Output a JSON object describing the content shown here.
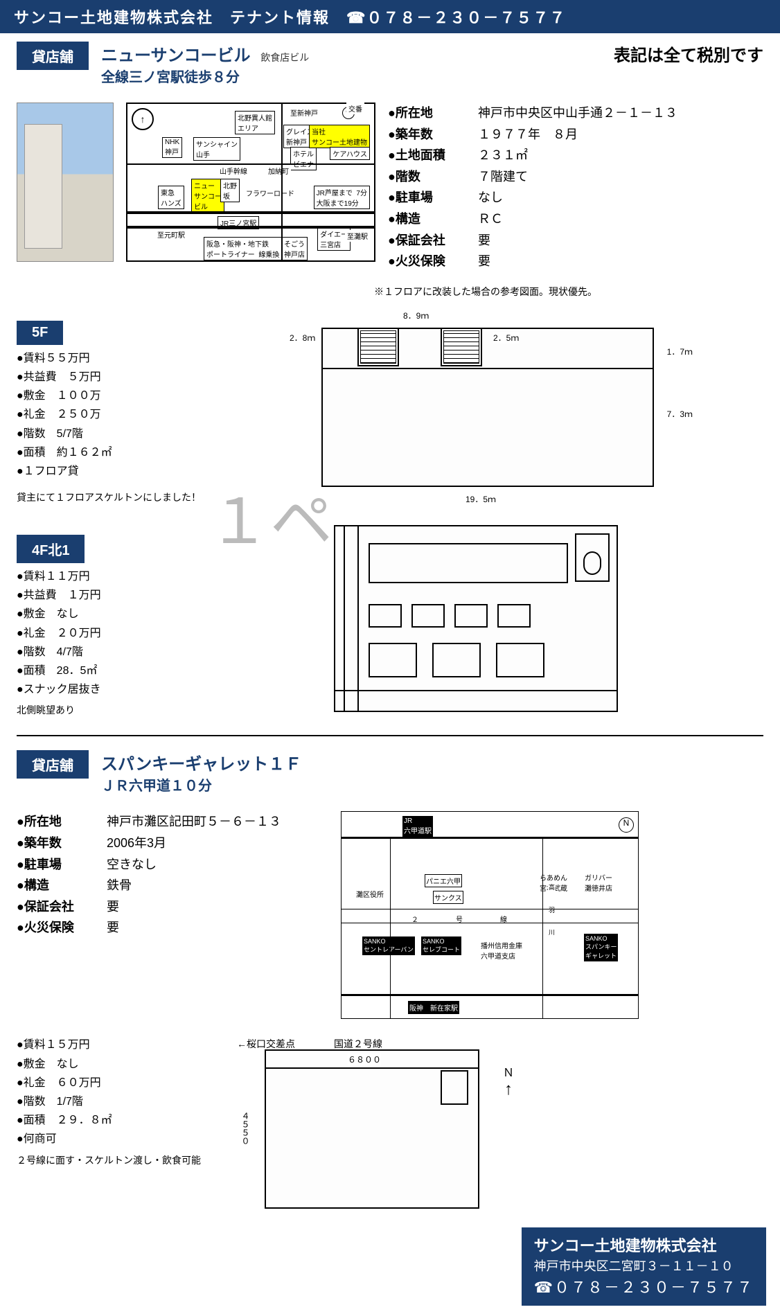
{
  "header": {
    "company": "サンコー土地建物株式会社",
    "tenant": "テナント情報",
    "tel": "☎０７８－２３０－７５７７"
  },
  "taxnote": "表記は全て税別です",
  "p1": {
    "badge": "貸店舗",
    "bld": "ニューサンコービル",
    "type": "飲食店ビル",
    "access": "全線三ノ宮駅徒歩８分",
    "specs": [
      {
        "k": "●所在地",
        "v": "神戸市中央区中山手通２－１－１３"
      },
      {
        "k": "●築年数",
        "v": "１９７７年　８月"
      },
      {
        "k": "●土地面積",
        "v": "２３１㎡"
      },
      {
        "k": "●階数",
        "v": "７階建て"
      },
      {
        "k": "●駐車場",
        "v": "なし"
      },
      {
        "k": "●構造",
        "v": "ＲＣ"
      },
      {
        "k": "●保証会社",
        "v": "要"
      },
      {
        "k": "●火災保険",
        "v": "要"
      }
    ],
    "planNote": "※１フロアに改装した場合の参考図面。現状優先。",
    "floor5": {
      "badge": "5F",
      "items": [
        "賃料５５万円",
        "共益費　５万円",
        "敷金　１００万",
        "礼金　２５０万",
        "階数　5/7階",
        "面積　約１６２㎡",
        "１フロア貸"
      ],
      "note": "貸主にて１フロアスケルトンにしました！"
    },
    "dims5": {
      "a": "8．9ｍ",
      "b": "2．8ｍ",
      "c": "2．5ｍ",
      "d": "1．7ｍ",
      "e": "7．3ｍ",
      "f": "19．5ｍ"
    },
    "floor4": {
      "badge": "4F北1",
      "items": [
        "賃料１１万円",
        "共益費　１万円",
        "敷金　なし",
        "礼金　２０万円",
        "階数　4/7階",
        "面積　28．5㎡",
        "スナック居抜き"
      ],
      "extra": "北側眺望あり"
    }
  },
  "map1": {
    "nhk": "NHK\n神戸",
    "sun": "サンシャイン\n山手",
    "kita": "北野異人館\nエリア",
    "to_shinkobe": "至新神戸",
    "grace": "グレイスハイツ\n新神戸",
    "hotel": "ホテル\nビエナ",
    "here": "当社\nサンコー土地建物",
    "care": "ケアハウス",
    "yamate": "山手幹線",
    "kano": "加納町",
    "tokyu": "東急\nハンズ",
    "new": "ニュー\nサンコー\nビル",
    "kitano": "北野\n坂",
    "flower": "フラワーロード",
    "jrtime": "JR芦屋まで  7分\n大阪まで19分",
    "jr": "JR三ノ宮駅",
    "motomachi": "至元町駅",
    "hanshin": "阪急・阪神・地下鉄\nポートライナー  線乗換",
    "sogo": "そごう\n神戸店",
    "daiei": "ダイエー\n三宮店",
    "nada": "至灘駅",
    "kosaten": "交番"
  },
  "p2": {
    "badge": "貸店舗",
    "bld": "スパンキーギャレット１Ｆ",
    "access": "ＪＲ六甲道１０分",
    "specs": [
      {
        "k": "●所在地",
        "v": "神戸市灘区記田町５－６－１３"
      },
      {
        "k": "●築年数",
        "v": "2006年3月"
      },
      {
        "k": "●駐車場",
        "v": "空きなし"
      },
      {
        "k": "●構造",
        "v": "鉄骨"
      },
      {
        "k": "●保証会社",
        "v": "要"
      },
      {
        "k": "●火災保険",
        "v": "要"
      }
    ],
    "rent": {
      "items": [
        "賃料１５万円",
        "敷金　なし",
        "礼金　６０万円",
        "階数　1/7階",
        "面積　２９．８㎡",
        "何商可"
      ],
      "extra": "２号線に面す・スケルトン渡し・飲食可能"
    },
    "dims": {
      "w": "６８００",
      "h": "４５５０",
      "left": "←桜口交差点",
      "road": "国道２号線",
      "n": "Ｎ"
    }
  },
  "map2": {
    "jr": "JR\n六甲道駅",
    "nada": "灘区役所",
    "panie": "パニエ六甲",
    "thanks": "サンクス",
    "ramen": "らあめん\n宮本武蔵",
    "gulliver": "ガリバー\n灘徳井店",
    "route": "２　　　号　　　線",
    "s1": "SANKO\nセントレアーバン",
    "s2": "SANKO\nセレブコート",
    "bank": "播州信用金庫\n六甲道支店",
    "s3": "SANKO\nスパンキー\nギャレット",
    "hanshin": "阪神　新在家駅",
    "taka": "高\n\n羽\n\n川",
    "n": "N"
  },
  "watermark": "１ペ",
  "footer": {
    "c": "サンコー土地建物株式会社",
    "a": "神戸市中央区二宮町３－１１－１０",
    "t": "☎０７８－２３０－７５７７"
  }
}
